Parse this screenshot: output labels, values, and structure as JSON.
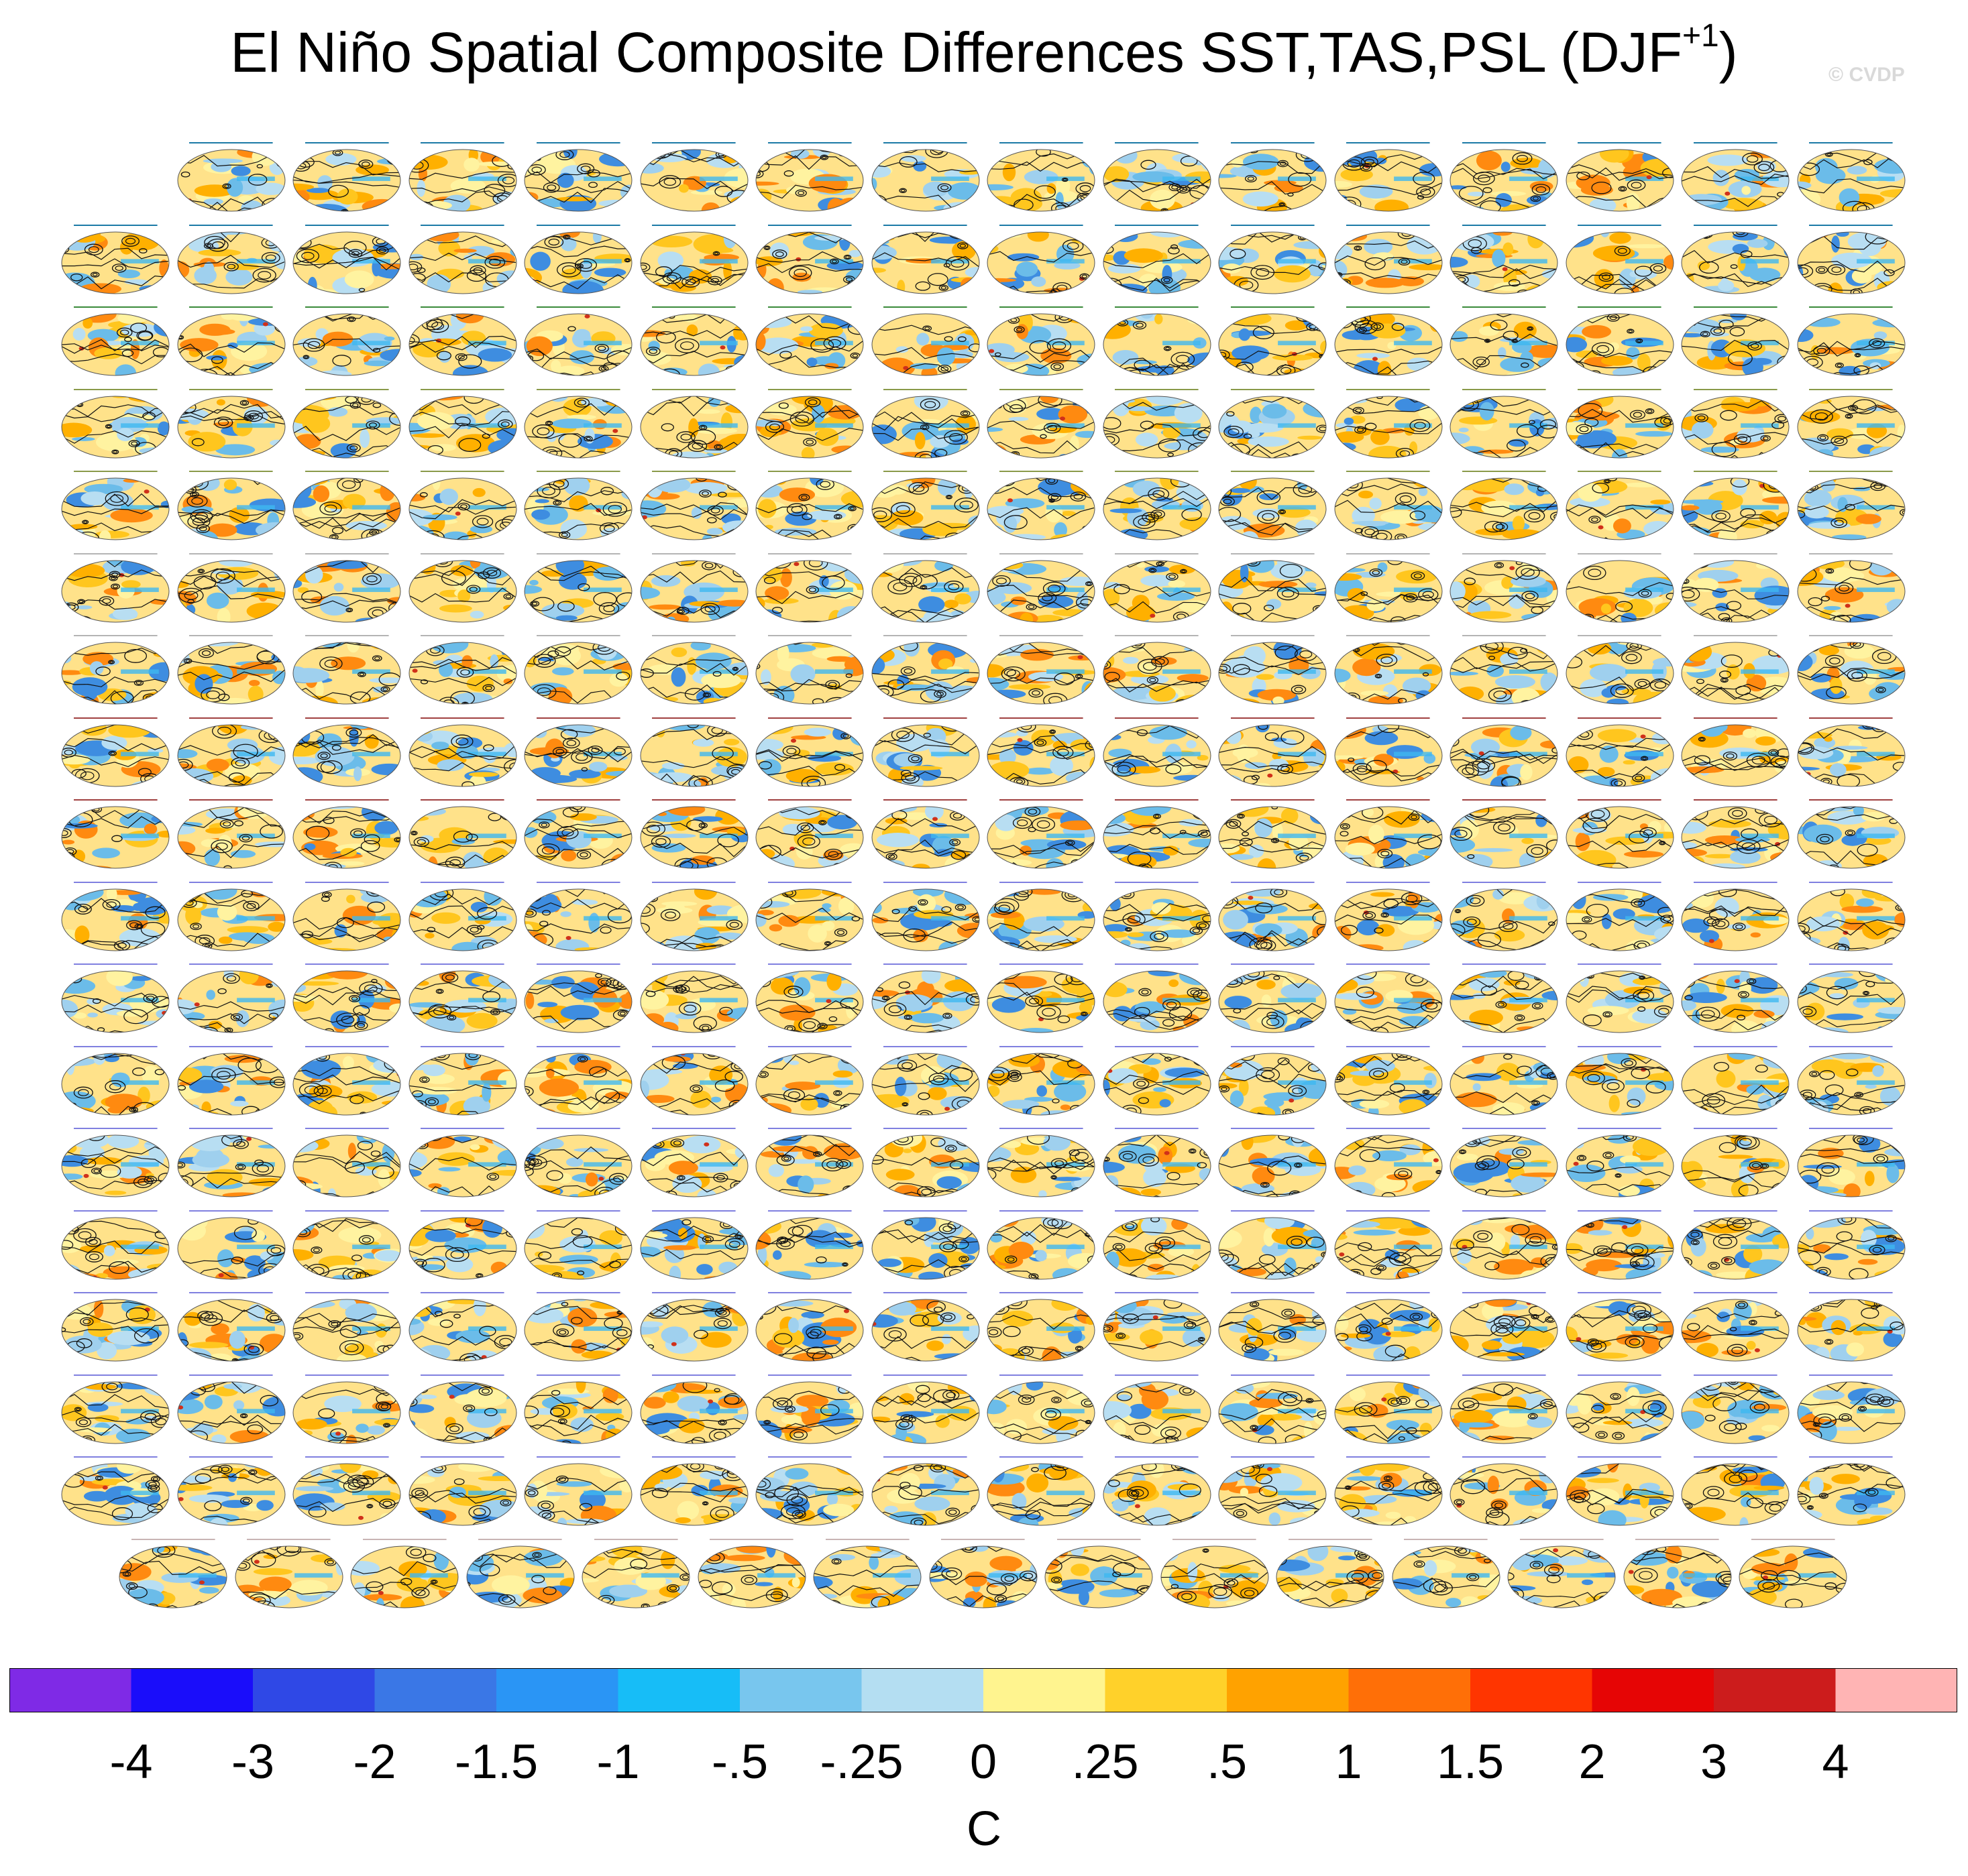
{
  "chart_data": {
    "type": "heatmap",
    "title_main": "El Niño Spatial Composite Differences SST,TAS,PSL (DJF",
    "title_sup": "+1",
    "title_close": ")",
    "watermark": "© CVDP",
    "panel_rows": [
      15,
      16,
      16,
      16,
      16,
      16,
      16,
      16,
      16,
      16,
      16,
      16,
      16,
      16,
      16,
      16,
      16,
      15
    ],
    "colorbar": {
      "levels": [
        "-4",
        "-3",
        "-2",
        "-1.5",
        "-1",
        "-.5",
        "-.25",
        "0",
        ".25",
        ".5",
        "1",
        "1.5",
        "2",
        "3",
        "4"
      ],
      "colors": [
        "#7f2ae6",
        "#1a0dfa",
        "#2f48e6",
        "#3a77e6",
        "#2a95f5",
        "#17bdf7",
        "#78c6ee",
        "#b4def2",
        "#fff48f",
        "#ffd12a",
        "#ffa200",
        "#ff6f07",
        "#ff3500",
        "#e60505",
        "#cc1c1c",
        "#ffb4b4"
      ],
      "unit": "C"
    },
    "panel_title_colors": [
      "#1b7aa6",
      "#1b7aa6",
      "#3a8a3a",
      "#8a9a4a",
      "#8a9a4a",
      "#b4b4b4",
      "#b4b4b4",
      "#a04040",
      "#a04040",
      "#8080e0",
      "#8080e0",
      "#8080e0",
      "#8080e0",
      "#8080e0",
      "#8080e0",
      "#8080e0",
      "#8080e0",
      "#c8b4b4"
    ]
  }
}
